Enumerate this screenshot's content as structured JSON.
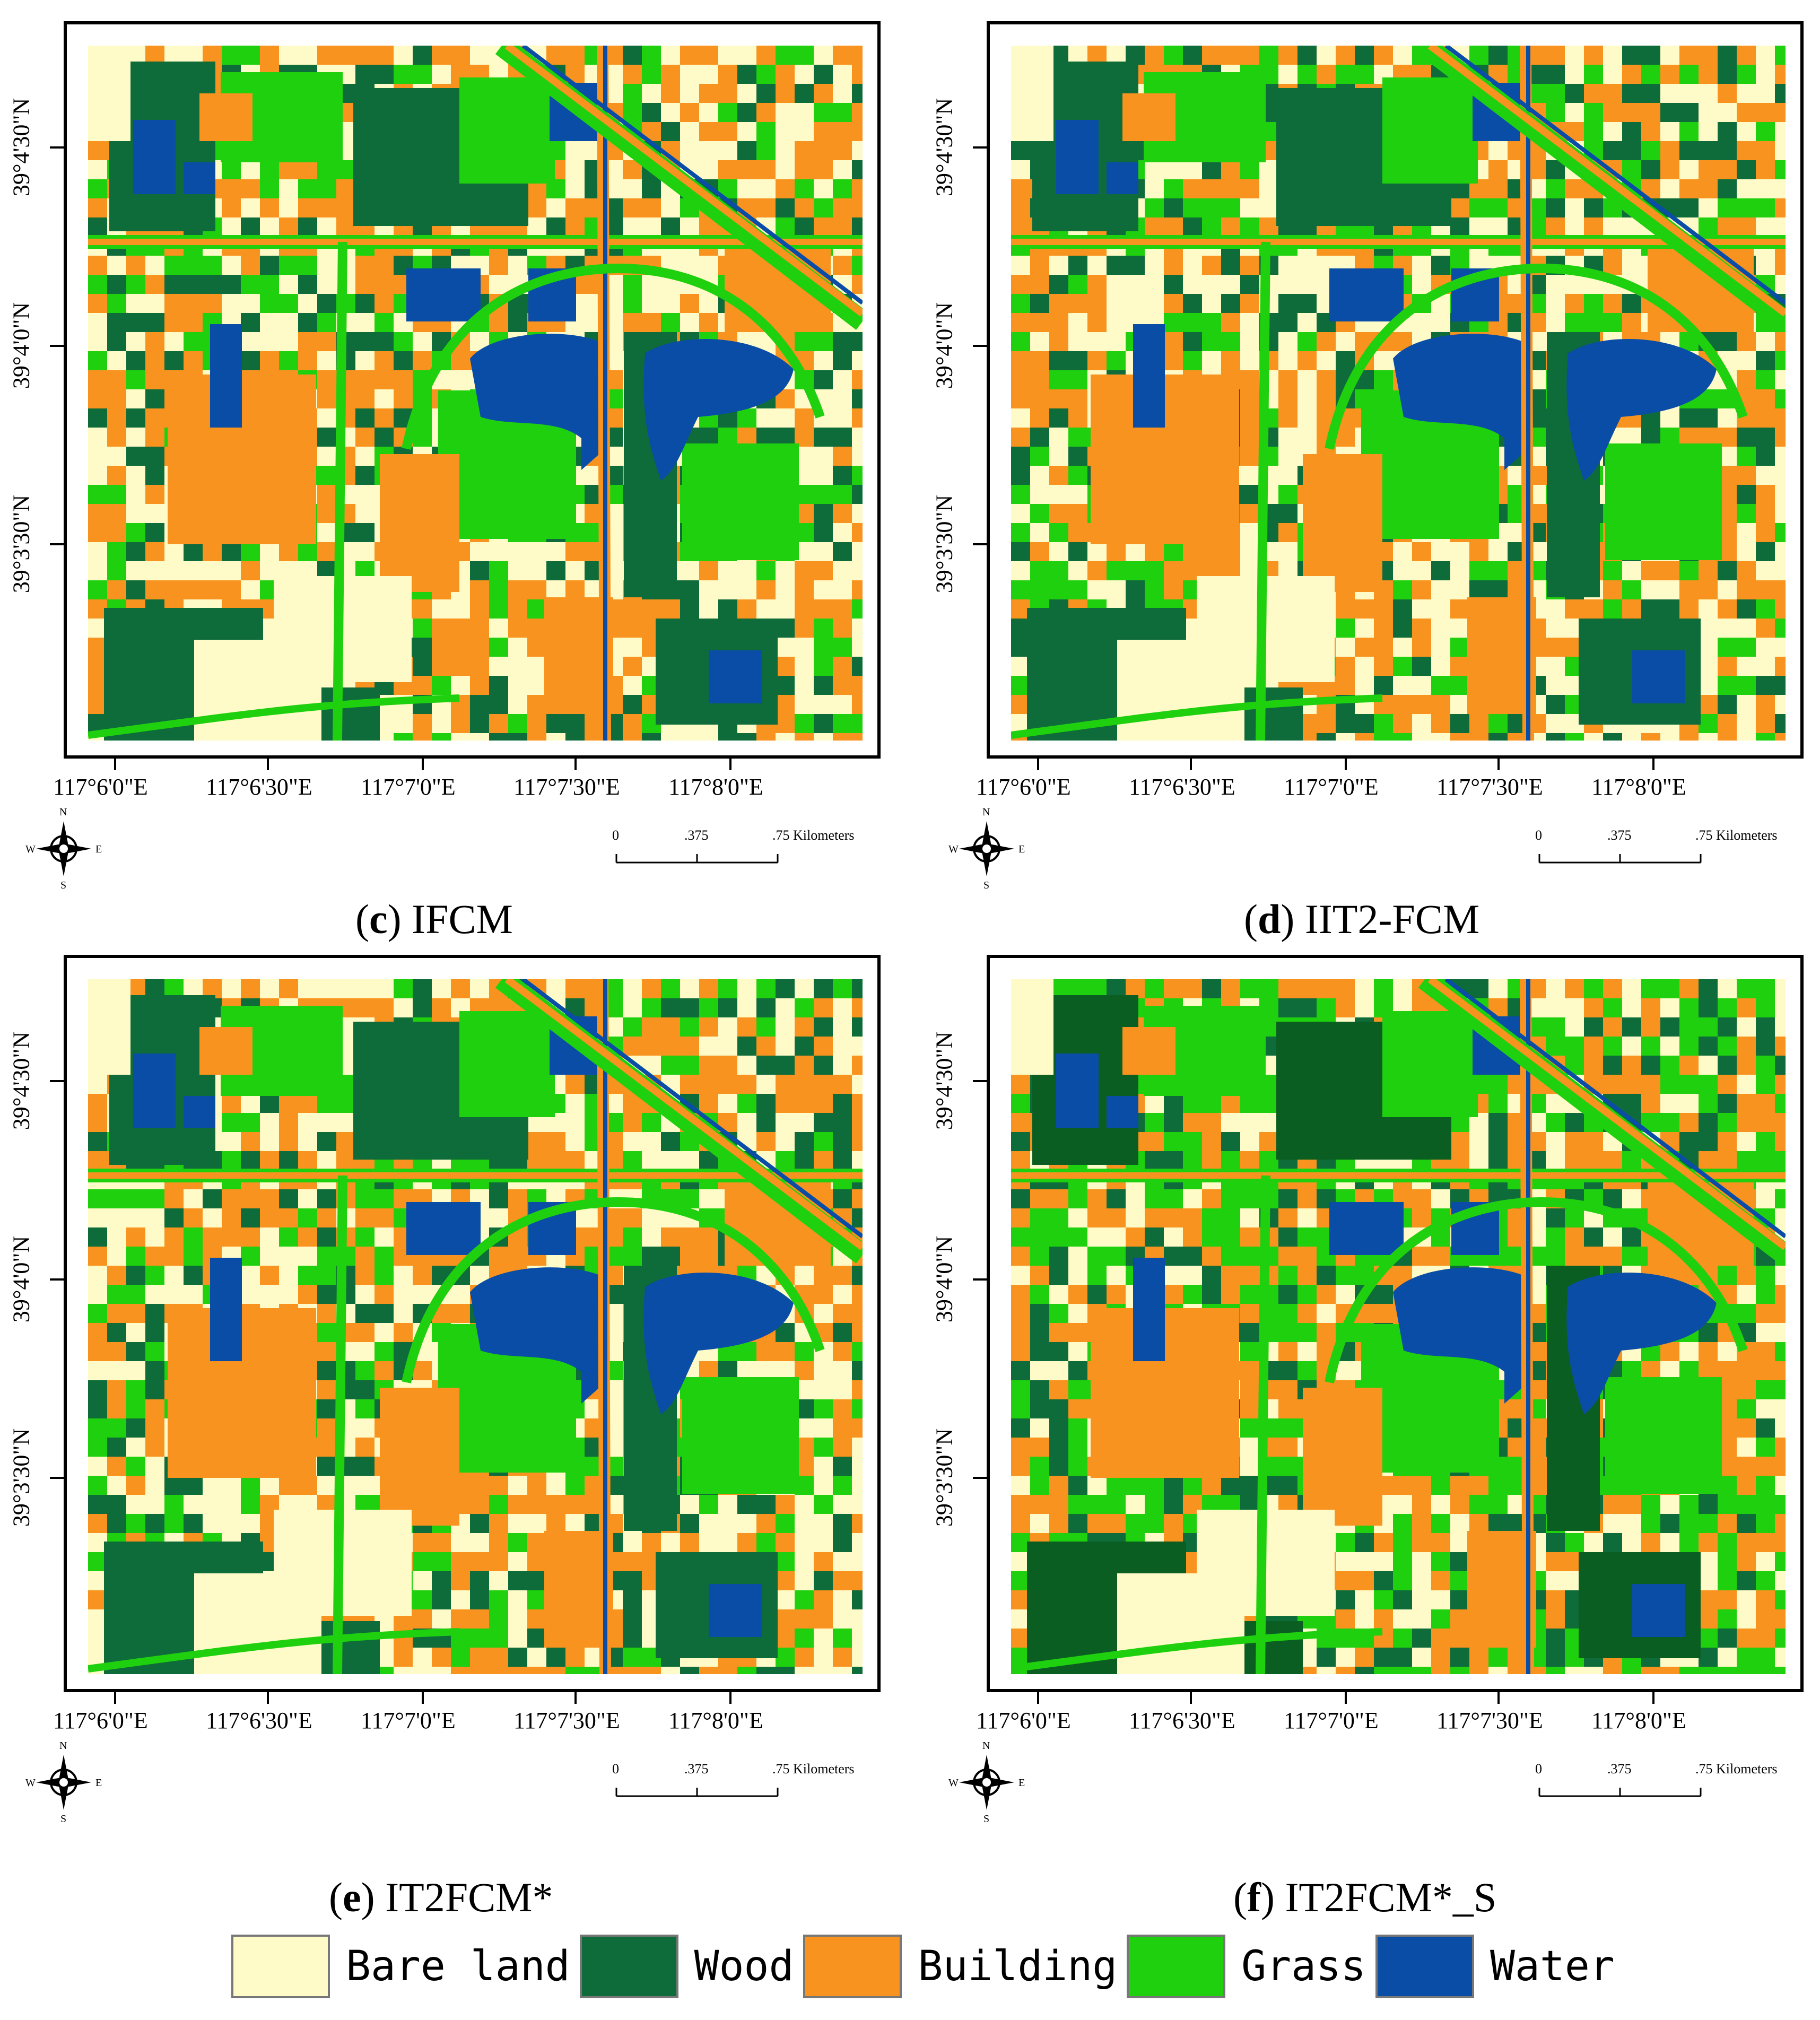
{
  "panels": [
    {
      "caption_letter": "c",
      "caption_text": "IFCM",
      "variant": 0
    },
    {
      "caption_letter": "d",
      "caption_text": "IIT2-FCM",
      "variant": 1
    },
    {
      "caption_letter": "e",
      "caption_text": "IT2FCM*",
      "variant": 2
    },
    {
      "caption_letter": "f",
      "caption_text": "IT2FCM*_S",
      "variant": 3
    }
  ],
  "lat_labels": [
    "39°4'30\"N",
    "39°4'0\"N",
    "39°3'30\"N"
  ],
  "lon_labels": [
    "117°6'0\"E",
    "117°6'30\"E",
    "117°7'0\"E",
    "117°7'30\"E",
    "117°8'0\"E"
  ],
  "compass": {
    "n": "N",
    "s": "S",
    "e": "E",
    "w": "W"
  },
  "scale_bar": {
    "labels": [
      "0",
      ".375",
      ".75 Kilometers"
    ]
  },
  "legend": [
    {
      "label": "Bare land",
      "color": "#FFFBC8"
    },
    {
      "label": "Wood",
      "color": "#0E6B3A"
    },
    {
      "label": "Building",
      "color": "#F7931E"
    },
    {
      "label": "Grass",
      "color": "#1FD00F"
    },
    {
      "label": "Water",
      "color": "#0A4DA6"
    }
  ]
}
